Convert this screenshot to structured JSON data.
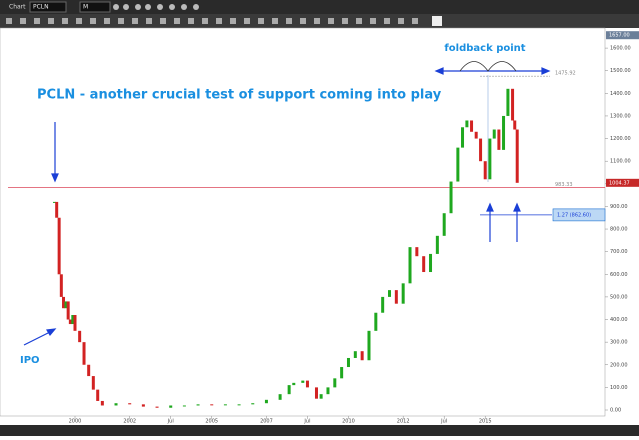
{
  "toolbar": {
    "label": "Chart",
    "symbol": "PCLN",
    "interval": "M"
  },
  "chart_data": {
    "type": "candlestick",
    "title": "PCLN - another crucial test of support coming into play",
    "annotations": {
      "foldback": "foldback point",
      "ipo": "IPO"
    },
    "x": [
      1999.25,
      1999.33,
      1999.42,
      1999.5,
      1999.58,
      1999.67,
      1999.75,
      1999.83,
      1999.92,
      2000.0,
      2000.17,
      2000.33,
      2000.5,
      2000.67,
      2000.83,
      2001.0,
      2001.5,
      2002.0,
      2002.5,
      2003.0,
      2003.5,
      2004.0,
      2004.5,
      2005.0,
      2005.5,
      2006.0,
      2006.5,
      2007.0,
      2007.5,
      2007.83,
      2008.0,
      2008.33,
      2008.5,
      2008.83,
      2009.0,
      2009.25,
      2009.5,
      2009.75,
      2010.0,
      2010.25,
      2010.5,
      2010.75,
      2011.0,
      2011.25,
      2011.5,
      2011.75,
      2012.0,
      2012.25,
      2012.5,
      2012.75,
      2013.0,
      2013.25,
      2013.5,
      2013.75,
      2014.0,
      2014.17,
      2014.33,
      2014.5,
      2014.67,
      2014.83,
      2015.0,
      2015.17,
      2015.33,
      2015.5,
      2015.67,
      2015.83,
      2016.0,
      2016.08,
      2016.17
    ],
    "values": [
      920,
      850,
      600,
      500,
      450,
      480,
      400,
      380,
      420,
      350,
      300,
      200,
      150,
      90,
      40,
      20,
      30,
      25,
      15,
      10,
      20,
      20,
      25,
      22,
      25,
      25,
      30,
      45,
      70,
      110,
      120,
      130,
      100,
      50,
      70,
      100,
      140,
      190,
      230,
      260,
      220,
      350,
      430,
      500,
      530,
      470,
      560,
      720,
      680,
      610,
      690,
      770,
      870,
      1010,
      1160,
      1250,
      1280,
      1230,
      1200,
      1100,
      1020,
      1200,
      1240,
      1150,
      1300,
      1420,
      1280,
      1240,
      1004.37
    ],
    "up_color": "#1fa81f",
    "down_color": "#d22222",
    "xlim": [
      1997.55,
      2019.38
    ],
    "xticks": [
      {
        "value": 2000,
        "label": "2000"
      },
      {
        "value": 2002,
        "label": "2002"
      },
      {
        "value": 2003.5,
        "label": "Jul"
      },
      {
        "value": 2005,
        "label": "2005"
      },
      {
        "value": 2007,
        "label": "2007"
      },
      {
        "value": 2008.5,
        "label": "Jul"
      },
      {
        "value": 2010,
        "label": "2010"
      },
      {
        "value": 2012,
        "label": "2012"
      },
      {
        "value": 2013.5,
        "label": "Jul"
      },
      {
        "value": 2015,
        "label": "2015"
      }
    ],
    "ylim": [
      0,
      1680
    ],
    "yticks": [
      {
        "value": 0,
        "label": "0.00"
      },
      {
        "value": 100,
        "label": "100.00"
      },
      {
        "value": 200,
        "label": "200.00"
      },
      {
        "value": 300,
        "label": "300.00"
      },
      {
        "value": 400,
        "label": "400.00"
      },
      {
        "value": 500,
        "label": "500.00"
      },
      {
        "value": 600,
        "label": "600.00"
      },
      {
        "value": 700,
        "label": "700.00"
      },
      {
        "value": 800,
        "label": "800.00"
      },
      {
        "value": 900,
        "label": "900.00"
      },
      {
        "value": 1000,
        "label": "1000.00"
      },
      {
        "value": 1100,
        "label": "1100.00"
      },
      {
        "value": 1200,
        "label": "1200.00"
      },
      {
        "value": 1300,
        "label": "1300.00"
      },
      {
        "value": 1400,
        "label": "1400.00"
      },
      {
        "value": 1500,
        "label": "1500.00"
      },
      {
        "value": 1600,
        "label": "1600.00"
      }
    ],
    "top_marker": {
      "value": 1657,
      "label": "1657.00"
    },
    "levels": [
      1475.92,
      983.33
    ],
    "fib": {
      "value": 862.6,
      "label": "1.27 (862.60)"
    }
  }
}
